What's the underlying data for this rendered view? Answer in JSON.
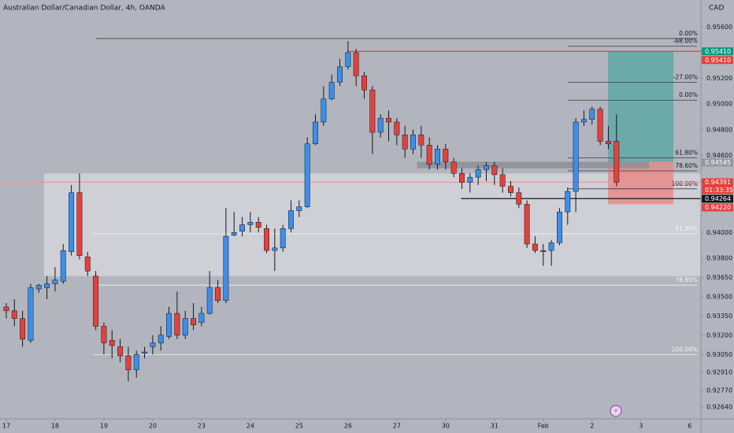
{
  "chart_data": {
    "type": "candlestick",
    "title": "Australian Dollar/Canadian Dollar, 4h, OANDA",
    "currency": "CAD",
    "up_color": "#3d8ee8",
    "down_color": "#e4413c",
    "open": [
      0.9342,
      0.9339,
      0.9333,
      0.9316,
      0.9356,
      0.9357,
      0.936,
      0.9362,
      0.9385,
      0.9431,
      0.9381,
      0.9366,
      0.9327,
      0.9316,
      0.9311,
      0.9304,
      0.9293,
      0.9306,
      0.9311,
      0.9314,
      0.9319,
      0.9337,
      0.932,
      0.9333,
      0.933,
      0.9337,
      0.9357,
      0.9347,
      0.9398,
      0.9401,
      0.9406,
      0.9408,
      0.9403,
      0.9386,
      0.9388,
      0.9403,
      0.9417,
      0.942,
      0.9469,
      0.9486,
      0.9504,
      0.9517,
      0.9529,
      0.954,
      0.9522,
      0.9511,
      0.9478,
      0.9489,
      0.9486,
      0.9476,
      0.9465,
      0.9476,
      0.9468,
      0.9453,
      0.9465,
      0.9455,
      0.9446,
      0.9439,
      0.9443,
      0.9449,
      0.9452,
      0.9445,
      0.9436,
      0.9431,
      0.9422,
      0.9391,
      0.9386,
      0.9386,
      0.9392,
      0.9416,
      0.9432,
      0.9486,
      0.9488,
      0.9496,
      0.9471,
      0.9471
    ],
    "high": [
      0.9345,
      0.9348,
      0.9339,
      0.936,
      0.936,
      0.9366,
      0.9373,
      0.9391,
      0.9437,
      0.9446,
      0.9385,
      0.937,
      0.933,
      0.9324,
      0.9317,
      0.9311,
      0.9308,
      0.9311,
      0.932,
      0.9327,
      0.9342,
      0.9354,
      0.9339,
      0.9345,
      0.9342,
      0.937,
      0.9363,
      0.9419,
      0.9416,
      0.9412,
      0.9416,
      0.9412,
      0.9406,
      0.9403,
      0.9406,
      0.9425,
      0.9425,
      0.9474,
      0.9492,
      0.9514,
      0.9523,
      0.9535,
      0.9549,
      0.9543,
      0.9525,
      0.9514,
      0.9492,
      0.9495,
      0.9489,
      0.9483,
      0.948,
      0.9483,
      0.9474,
      0.9468,
      0.9469,
      0.9458,
      0.945,
      0.9446,
      0.9452,
      0.9455,
      0.9455,
      0.945,
      0.944,
      0.9435,
      0.9425,
      0.9397,
      0.9391,
      0.9394,
      0.9419,
      0.9435,
      0.9489,
      0.9495,
      0.9498,
      0.9498,
      0.9483,
      0.9492
    ],
    "low": [
      0.9333,
      0.9327,
      0.9311,
      0.9314,
      0.9353,
      0.9348,
      0.9354,
      0.936,
      0.9382,
      0.9379,
      0.9366,
      0.9324,
      0.9305,
      0.9302,
      0.9299,
      0.9284,
      0.9287,
      0.9302,
      0.9305,
      0.9308,
      0.9317,
      0.9317,
      0.9317,
      0.9324,
      0.9327,
      0.9336,
      0.9345,
      0.9345,
      0.9397,
      0.9397,
      0.94,
      0.94,
      0.9384,
      0.937,
      0.9385,
      0.94,
      0.9412,
      0.9419,
      0.9468,
      0.9483,
      0.9503,
      0.9514,
      0.9527,
      0.9514,
      0.9504,
      0.9461,
      0.9474,
      0.9471,
      0.9468,
      0.9458,
      0.9461,
      0.9458,
      0.9449,
      0.9449,
      0.9449,
      0.9443,
      0.9434,
      0.9431,
      0.9437,
      0.944,
      0.9437,
      0.9431,
      0.9428,
      0.9419,
      0.9388,
      0.9384,
      0.9374,
      0.9374,
      0.939,
      0.9406,
      0.9416,
      0.9483,
      0.9484,
      0.9468,
      0.9465,
      0.9436
    ],
    "close": [
      0.9339,
      0.9333,
      0.9317,
      0.9357,
      0.9359,
      0.936,
      0.9363,
      0.9386,
      0.9431,
      0.9382,
      0.937,
      0.9327,
      0.9314,
      0.9312,
      0.9304,
      0.9293,
      0.9305,
      0.9307,
      0.9314,
      0.932,
      0.9337,
      0.932,
      0.9333,
      0.9328,
      0.9337,
      0.9357,
      0.9347,
      0.9397,
      0.94,
      0.9406,
      0.9408,
      0.9404,
      0.9386,
      0.9388,
      0.9403,
      0.9417,
      0.942,
      0.9469,
      0.9486,
      0.9504,
      0.9517,
      0.9529,
      0.954,
      0.9522,
      0.9511,
      0.9478,
      0.9489,
      0.9486,
      0.9476,
      0.9465,
      0.9476,
      0.9468,
      0.9453,
      0.9465,
      0.9455,
      0.9446,
      0.9439,
      0.9443,
      0.9449,
      0.9452,
      0.9445,
      0.9436,
      0.9431,
      0.9422,
      0.9391,
      0.9386,
      0.9385,
      0.9392,
      0.9416,
      0.9432,
      0.9486,
      0.9488,
      0.9496,
      0.9471,
      0.9469,
      0.9439
    ],
    "xlim": [
      -0.77,
      85.38
    ],
    "xticks": [
      {
        "value": 0,
        "label": "17"
      },
      {
        "value": 6,
        "label": "18"
      },
      {
        "value": 12,
        "label": "19"
      },
      {
        "value": 18,
        "label": "20"
      },
      {
        "value": 24,
        "label": "23"
      },
      {
        "value": 30,
        "label": "24"
      },
      {
        "value": 36,
        "label": "25"
      },
      {
        "value": 42,
        "label": "26"
      },
      {
        "value": 48,
        "label": "27"
      },
      {
        "value": 54,
        "label": "30"
      },
      {
        "value": 60,
        "label": "31"
      },
      {
        "value": 66,
        "label": "Feb"
      },
      {
        "value": 72,
        "label": "2"
      },
      {
        "value": 78,
        "label": "3"
      },
      {
        "value": 84,
        "label": "6"
      }
    ],
    "ylim": [
      0.92549,
      0.9581
    ],
    "yticks": [
      {
        "value": 0.956,
        "label": "0.95600"
      },
      {
        "value": 0.952,
        "label": "0.95200"
      },
      {
        "value": 0.95,
        "label": "0.95000"
      },
      {
        "value": 0.948,
        "label": "0.94800"
      },
      {
        "value": 0.946,
        "label": "0.94600"
      },
      {
        "value": 0.94,
        "label": "0.94000"
      },
      {
        "value": 0.938,
        "label": "0.93800"
      },
      {
        "value": 0.9365,
        "label": "0.93650"
      },
      {
        "value": 0.935,
        "label": "0.93500"
      },
      {
        "value": 0.9335,
        "label": "0.93350"
      },
      {
        "value": 0.932,
        "label": "0.93200"
      },
      {
        "value": 0.9305,
        "label": "0.93050"
      },
      {
        "value": 0.9291,
        "label": "0.92910"
      },
      {
        "value": 0.9277,
        "label": "0.92770"
      },
      {
        "value": 0.9264,
        "label": "0.92640"
      }
    ],
    "grid": false,
    "zones": [
      {
        "from": 4.65,
        "to": 85.38,
        "top": 0.9446,
        "bottom": 0.9366,
        "color": "#d3d5da"
      },
      {
        "from": 73.96,
        "to": 82,
        "top": 0.9541,
        "bottom": 0.9455,
        "color": "#5fa8a6"
      },
      {
        "from": 73.96,
        "to": 82,
        "top": 0.9455,
        "bottom": 0.9422,
        "color": "#e58b8a"
      },
      {
        "from": 50.5,
        "to": 79,
        "top": 0.9455,
        "bottom": 0.945,
        "color": "#8c8f96"
      }
    ],
    "lines": [
      {
        "value": 0.9541,
        "from": 42,
        "color": "#e4413c"
      },
      {
        "value": 0.94264,
        "from": 55.9,
        "color": "#131722"
      },
      {
        "value": 0.94391,
        "from": -0.77,
        "color": "#e99a98"
      }
    ],
    "fib_levels": [
      {
        "label": "0.00%",
        "value": 0.9551,
        "from": 11
      },
      {
        "label": "-68.00%",
        "value": 0.9545,
        "from": 69
      },
      {
        "label": "-27.00%",
        "value": 0.9517,
        "from": 69
      },
      {
        "label": "0.00%",
        "value": 0.9503,
        "from": 69
      },
      {
        "label": "61.80%",
        "value": 0.9458,
        "from": 69
      },
      {
        "label": "78.60%",
        "value": 0.9448,
        "from": 69
      },
      {
        "label": "100.00%",
        "value": 0.9434,
        "from": 69
      },
      {
        "label": "61.80%",
        "value": 0.9399,
        "from": 10.7
      },
      {
        "label": "78.60%",
        "value": 0.9359,
        "from": 10.7
      },
      {
        "label": "100.00%",
        "value": 0.9305,
        "from": 10.7
      }
    ],
    "price_labels": [
      {
        "value": 0.9541,
        "label": "0.95410",
        "color": "#089981"
      },
      {
        "value": 0.9541,
        "label": "0.95410",
        "color": "#e4413c"
      },
      {
        "value": 0.94545,
        "label": "0.94545",
        "color": "#9598a1"
      },
      {
        "value": 0.94391,
        "label": "0.94391",
        "color": "#e4413c",
        "countdown": "01:33:35"
      },
      {
        "value": 0.94264,
        "label": "0.94264",
        "color": "#131722"
      },
      {
        "value": 0.9422,
        "label": "0.94220",
        "color": "#e4413c"
      }
    ]
  }
}
